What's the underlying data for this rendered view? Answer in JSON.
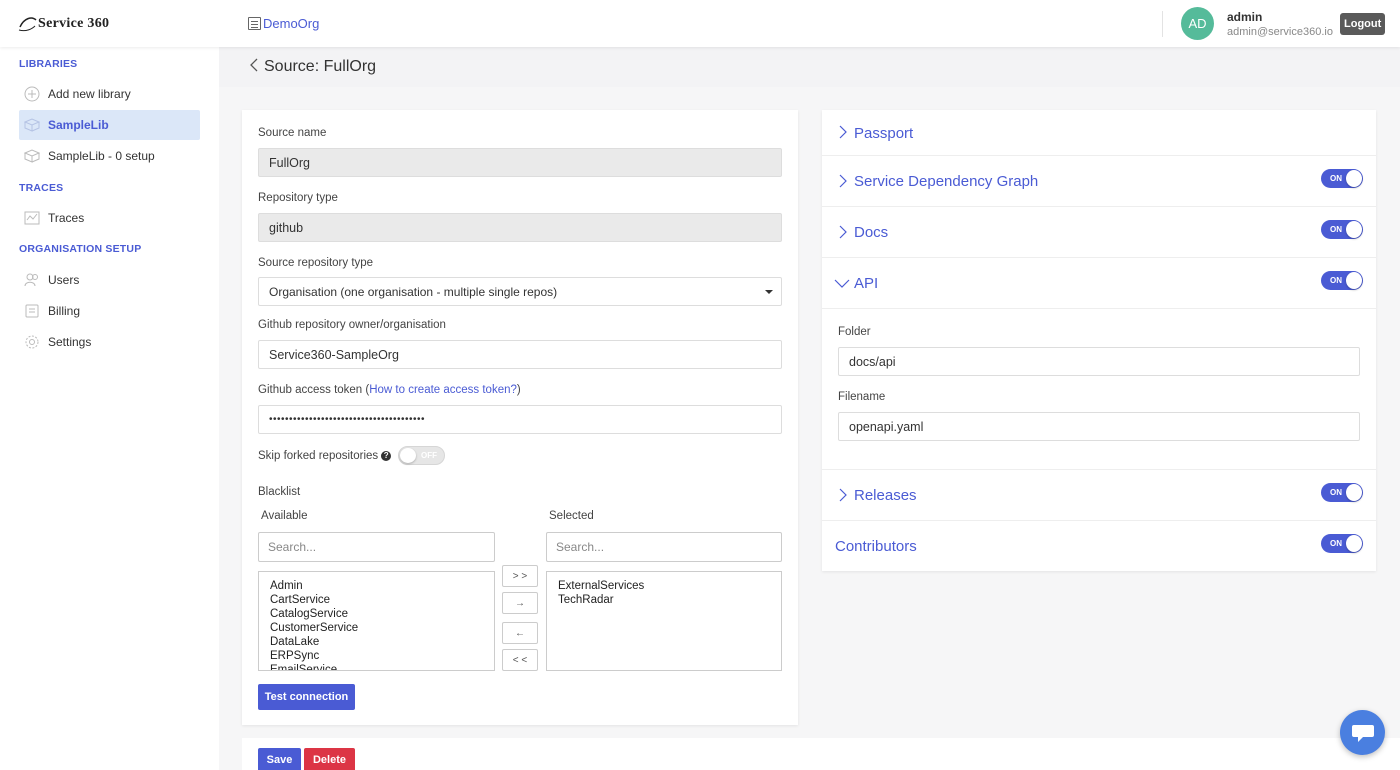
{
  "header": {
    "logo_text": "Service 360",
    "org_name": "DemoOrg",
    "avatar_initials": "AD",
    "user_name": "admin",
    "user_email": "admin@service360.io",
    "logout_label": "Logout"
  },
  "sidebar": {
    "libraries_title": "LIBRARIES",
    "add_library": "Add new library",
    "libraries": [
      {
        "label": "SampleLib",
        "active": true
      },
      {
        "label": "SampleLib - 0 setup",
        "active": false
      }
    ],
    "traces_title": "TRACES",
    "traces_item": "Traces",
    "org_title": "ORGANISATION SETUP",
    "org_items": [
      "Users",
      "Billing",
      "Settings"
    ]
  },
  "page": {
    "title": "Source: FullOrg"
  },
  "form": {
    "source_name_label": "Source name",
    "source_name_value": "FullOrg",
    "repo_type_label": "Repository type",
    "repo_type_value": "github",
    "source_repo_type_label": "Source repository type",
    "source_repo_type_value": "Organisation (one organisation - multiple single repos)",
    "owner_label": "Github repository owner/organisation",
    "owner_value": "Service360-SampleOrg",
    "token_label_prefix": "Github access token (",
    "token_link": "How to create access token?",
    "token_label_suffix": ")",
    "token_value": "•••••••••••••••••••••••••••••••••••••••",
    "skip_forked_label": "Skip forked repositories",
    "skip_forked_state": "OFF",
    "blacklist_label": "Blacklist",
    "available_label": "Available",
    "selected_label": "Selected",
    "search_placeholder_available": "Search...",
    "search_placeholder_selected": "Search...",
    "available_items": [
      "Admin",
      "CartService",
      "CatalogService",
      "CustomerService",
      "DataLake",
      "ERPSync",
      "EmailService"
    ],
    "selected_items": [
      "ExternalServices",
      "TechRadar"
    ],
    "move_all_right": "> >",
    "move_right": "→",
    "move_left": "←",
    "move_all_left": "< <",
    "test_connection": "Test connection"
  },
  "actions": {
    "save": "Save",
    "delete": "Delete"
  },
  "features": {
    "passport": "Passport",
    "service_dependency_graph": "Service Dependency Graph",
    "docs": "Docs",
    "api": "API",
    "folder_label": "Folder",
    "folder_value": "docs/api",
    "filename_label": "Filename",
    "filename_value": "openapi.yaml",
    "releases": "Releases",
    "contributors": "Contributors",
    "toggle_on_label": "ON"
  },
  "colors": {
    "accent": "#4a5bd4",
    "danger": "#dc3545",
    "avatar": "#55bb9a",
    "active_nav_bg": "#dbe7f8"
  }
}
